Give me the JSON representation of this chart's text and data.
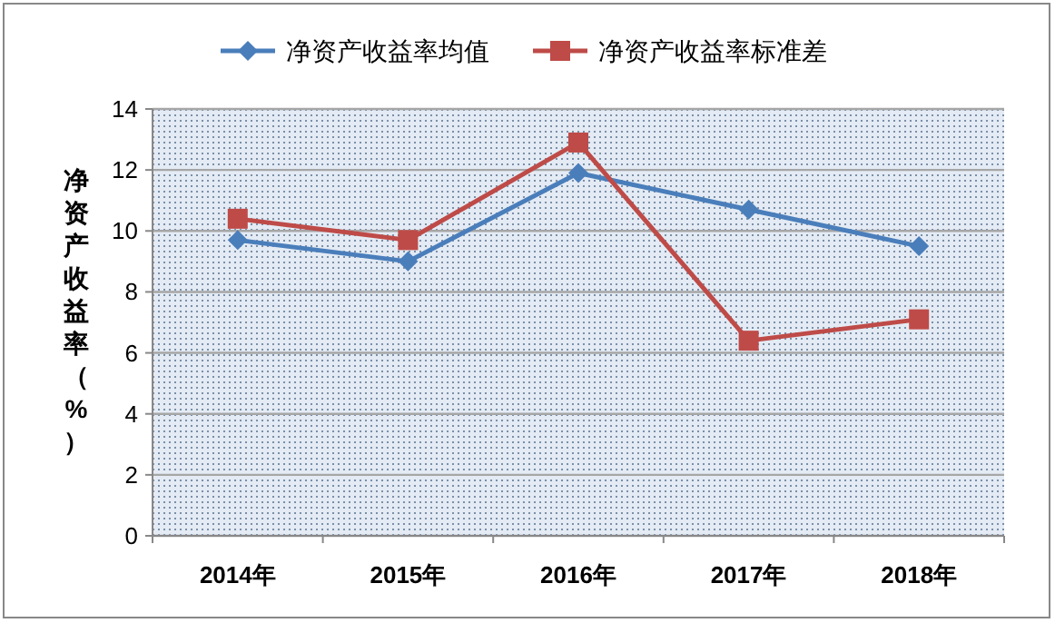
{
  "chart_data": {
    "type": "line",
    "ylabel": "净资产收益率（%）",
    "categories": [
      "2014年",
      "2015年",
      "2016年",
      "2017年",
      "2018年"
    ],
    "series": [
      {
        "name": "净资产收益率均值",
        "color": "#4a7ebb",
        "marker": "diamond",
        "values": [
          9.7,
          9.0,
          11.9,
          10.7,
          9.5
        ]
      },
      {
        "name": "净资产收益率标准差",
        "color": "#be4b48",
        "marker": "square",
        "values": [
          10.4,
          9.7,
          12.9,
          6.4,
          7.1
        ]
      }
    ],
    "ylim": [
      0,
      14
    ],
    "yticks": [
      0,
      2,
      4,
      6,
      8,
      10,
      12,
      14
    ],
    "grid": "y",
    "legend": "top",
    "line_style": "solid"
  }
}
